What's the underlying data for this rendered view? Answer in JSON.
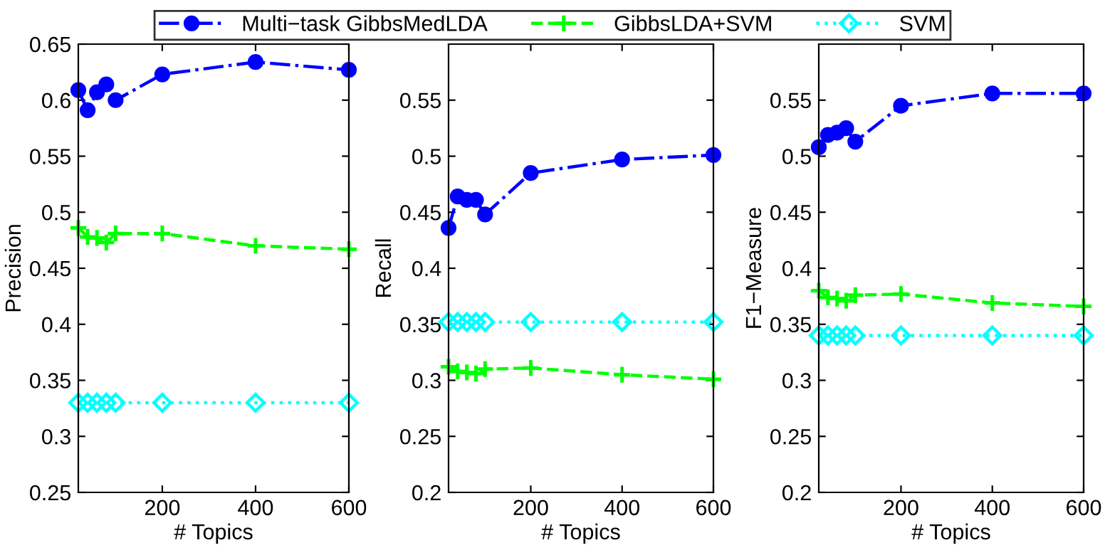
{
  "chart_data": [
    {
      "type": "line",
      "ylabel": "Precision",
      "xlabel": "# Topics",
      "x": [
        20,
        40,
        60,
        80,
        100,
        200,
        400,
        600
      ],
      "xlim": [
        20,
        600
      ],
      "xticks": [
        200,
        400,
        600
      ],
      "ylim": [
        0.25,
        0.65
      ],
      "yticks": [
        0.25,
        0.3,
        0.35,
        0.4,
        0.45,
        0.5,
        0.55,
        0.6,
        0.65
      ],
      "grid": false,
      "legend": "top",
      "series": [
        {
          "name": "Multi−task GibbsMedLDA",
          "color": "#0000ff",
          "marker": "circle",
          "line_style": "dashdot",
          "values": [
            0.609,
            0.591,
            0.607,
            0.614,
            0.6,
            0.623,
            0.634,
            0.627
          ]
        },
        {
          "name": "GibbsLDA+SVM",
          "color": "#00ff00",
          "marker": "cross",
          "line_style": "dashed",
          "values": [
            0.486,
            0.478,
            0.477,
            0.473,
            0.481,
            0.481,
            0.47,
            0.467
          ]
        },
        {
          "name": "SVM",
          "color": "#00ffff",
          "marker": "diamond",
          "line_style": "dotted",
          "values": [
            0.33,
            0.33,
            0.33,
            0.33,
            0.33,
            0.33,
            0.33,
            0.33
          ]
        }
      ]
    },
    {
      "type": "line",
      "ylabel": "Recall",
      "xlabel": "# Topics",
      "x": [
        20,
        40,
        60,
        80,
        100,
        200,
        400,
        600
      ],
      "xlim": [
        20,
        600
      ],
      "xticks": [
        200,
        400,
        600
      ],
      "ylim": [
        0.2,
        0.6
      ],
      "yticks": [
        0.2,
        0.25,
        0.3,
        0.35,
        0.4,
        0.45,
        0.5,
        0.55
      ],
      "grid": false,
      "series": [
        {
          "color": "#0000ff",
          "marker": "circle",
          "line_style": "dashdot",
          "values": [
            0.436,
            0.464,
            0.461,
            0.461,
            0.448,
            0.485,
            0.497,
            0.501
          ]
        },
        {
          "color": "#00ff00",
          "marker": "cross",
          "line_style": "dashed",
          "values": [
            0.312,
            0.308,
            0.307,
            0.306,
            0.31,
            0.311,
            0.305,
            0.301
          ]
        },
        {
          "color": "#00ffff",
          "marker": "diamond",
          "line_style": "dotted",
          "values": [
            0.352,
            0.352,
            0.352,
            0.352,
            0.352,
            0.352,
            0.352,
            0.352
          ]
        }
      ]
    },
    {
      "type": "line",
      "ylabel": "F1−Measure",
      "xlabel": "# Topics",
      "x": [
        20,
        40,
        60,
        80,
        100,
        200,
        400,
        600
      ],
      "xlim": [
        20,
        600
      ],
      "xticks": [
        200,
        400,
        600
      ],
      "ylim": [
        0.2,
        0.6
      ],
      "yticks": [
        0.2,
        0.25,
        0.3,
        0.35,
        0.4,
        0.45,
        0.5,
        0.55
      ],
      "grid": false,
      "series": [
        {
          "color": "#0000ff",
          "marker": "circle",
          "line_style": "dashdot",
          "values": [
            0.508,
            0.519,
            0.521,
            0.525,
            0.513,
            0.545,
            0.556,
            0.556
          ]
        },
        {
          "color": "#00ff00",
          "marker": "cross",
          "line_style": "dashed",
          "values": [
            0.38,
            0.374,
            0.373,
            0.371,
            0.376,
            0.377,
            0.369,
            0.366
          ]
        },
        {
          "color": "#00ffff",
          "marker": "diamond",
          "line_style": "dotted",
          "values": [
            0.34,
            0.34,
            0.34,
            0.34,
            0.34,
            0.34,
            0.34,
            0.34
          ]
        }
      ]
    }
  ]
}
